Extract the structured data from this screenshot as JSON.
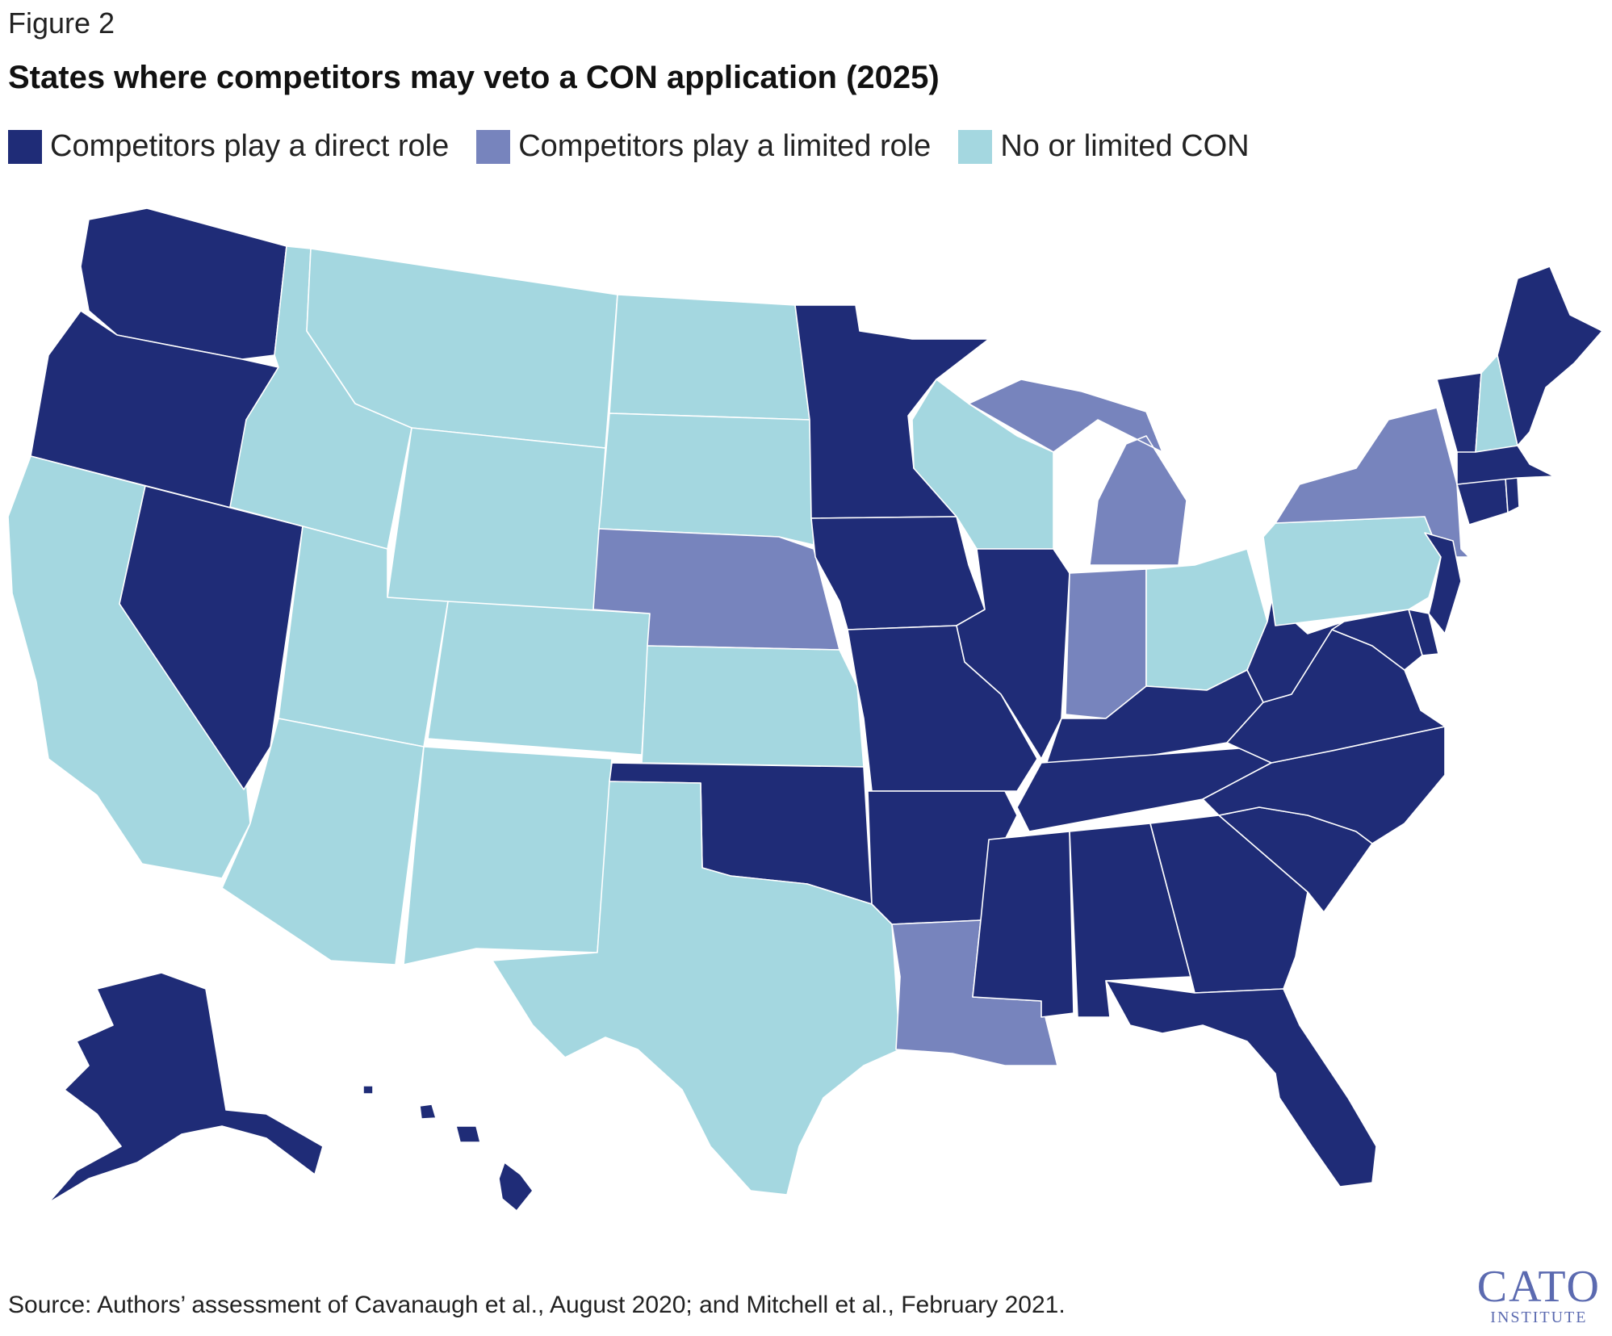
{
  "figure_label": "Figure 2",
  "title": "States where competitors may veto a CON application (2025)",
  "legend": [
    {
      "key": "direct",
      "label": "Competitors play a direct role",
      "color": "#1f2c77"
    },
    {
      "key": "limited",
      "label": "Competitors play a limited role",
      "color": "#7784bd"
    },
    {
      "key": "none",
      "label": "No or limited CON",
      "color": "#a4d7e0"
    }
  ],
  "map": {
    "states": [
      {
        "code": "WA",
        "category": "direct"
      },
      {
        "code": "OR",
        "category": "direct"
      },
      {
        "code": "CA",
        "category": "none"
      },
      {
        "code": "NV",
        "category": "direct"
      },
      {
        "code": "ID",
        "category": "none"
      },
      {
        "code": "MT",
        "category": "none"
      },
      {
        "code": "WY",
        "category": "none"
      },
      {
        "code": "UT",
        "category": "none"
      },
      {
        "code": "AZ",
        "category": "none"
      },
      {
        "code": "CO",
        "category": "none"
      },
      {
        "code": "NM",
        "category": "none"
      },
      {
        "code": "ND",
        "category": "none"
      },
      {
        "code": "SD",
        "category": "none"
      },
      {
        "code": "NE",
        "category": "limited"
      },
      {
        "code": "KS",
        "category": "none"
      },
      {
        "code": "OK",
        "category": "direct"
      },
      {
        "code": "TX",
        "category": "none"
      },
      {
        "code": "MN",
        "category": "direct"
      },
      {
        "code": "IA",
        "category": "direct"
      },
      {
        "code": "MO",
        "category": "direct"
      },
      {
        "code": "AR",
        "category": "direct"
      },
      {
        "code": "LA",
        "category": "limited"
      },
      {
        "code": "WI",
        "category": "none"
      },
      {
        "code": "IL",
        "category": "direct"
      },
      {
        "code": "MI",
        "category": "limited"
      },
      {
        "code": "IN",
        "category": "limited"
      },
      {
        "code": "OH",
        "category": "none"
      },
      {
        "code": "KY",
        "category": "direct"
      },
      {
        "code": "TN",
        "category": "direct"
      },
      {
        "code": "MS",
        "category": "direct"
      },
      {
        "code": "AL",
        "category": "direct"
      },
      {
        "code": "GA",
        "category": "direct"
      },
      {
        "code": "FL",
        "category": "direct"
      },
      {
        "code": "SC",
        "category": "direct"
      },
      {
        "code": "NC",
        "category": "direct"
      },
      {
        "code": "VA",
        "category": "direct"
      },
      {
        "code": "WV",
        "category": "direct"
      },
      {
        "code": "PA",
        "category": "none"
      },
      {
        "code": "NY",
        "category": "limited"
      },
      {
        "code": "NJ",
        "category": "direct"
      },
      {
        "code": "DE",
        "category": "direct"
      },
      {
        "code": "MD",
        "category": "direct"
      },
      {
        "code": "CT",
        "category": "direct"
      },
      {
        "code": "RI",
        "category": "direct"
      },
      {
        "code": "MA",
        "category": "direct"
      },
      {
        "code": "VT",
        "category": "direct"
      },
      {
        "code": "NH",
        "category": "none"
      },
      {
        "code": "ME",
        "category": "direct"
      },
      {
        "code": "AK",
        "category": "direct"
      },
      {
        "code": "HI",
        "category": "direct"
      }
    ]
  },
  "source": "Source: Authors’ assessment of Cavanaugh et al., August 2020; and Mitchell et al., February 2021.",
  "logo": {
    "main": "CATO",
    "sub": "INSTITUTE"
  }
}
